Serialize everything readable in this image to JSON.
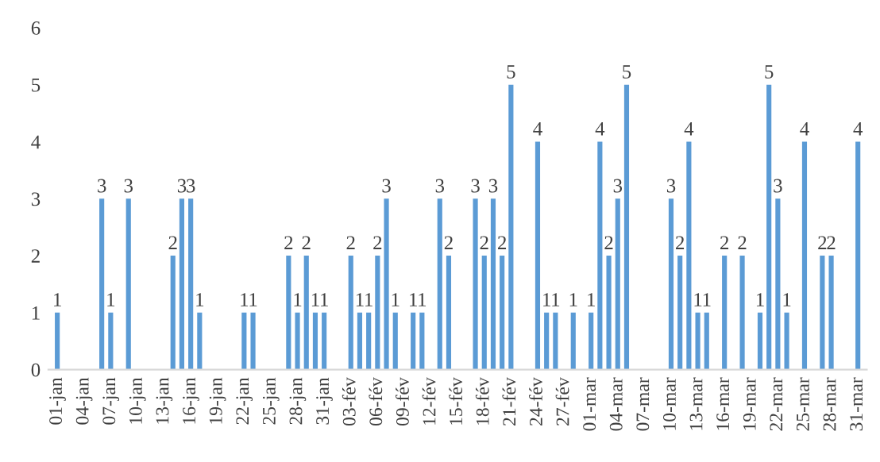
{
  "chart_data": {
    "type": "bar",
    "categories": [
      "01-jan",
      null,
      null,
      "04-jan",
      null,
      null,
      "07-jan",
      null,
      null,
      "10-jan",
      null,
      null,
      "13-jan",
      null,
      null,
      "16-jan",
      null,
      null,
      "19-jan",
      null,
      null,
      "22-jan",
      null,
      null,
      "25-jan",
      null,
      null,
      "28-jan",
      null,
      null,
      "31-jan",
      null,
      null,
      "03-fév",
      null,
      null,
      "06-fév",
      null,
      null,
      "09-fév",
      null,
      null,
      "12-fév",
      null,
      null,
      "15-fév",
      null,
      null,
      "18-fév",
      null,
      null,
      "21-fév",
      null,
      null,
      "24-fév",
      null,
      null,
      "27-fév",
      null,
      null,
      "01-mar",
      null,
      null,
      "04-mar",
      null,
      null,
      "07-mar",
      null,
      null,
      "10-mar",
      null,
      null,
      "13-mar",
      null,
      null,
      "16-mar",
      null,
      null,
      "19-mar",
      null,
      null,
      "22-mar",
      null,
      null,
      "25-mar",
      null,
      null,
      "28-mar",
      null,
      null,
      "31-mar"
    ],
    "values": [
      1,
      0,
      0,
      0,
      0,
      3,
      1,
      0,
      3,
      0,
      0,
      0,
      0,
      2,
      3,
      3,
      1,
      0,
      0,
      0,
      0,
      1,
      1,
      0,
      0,
      0,
      2,
      1,
      2,
      1,
      1,
      0,
      0,
      2,
      1,
      1,
      2,
      3,
      1,
      0,
      1,
      1,
      0,
      3,
      2,
      0,
      0,
      3,
      2,
      3,
      2,
      5,
      0,
      0,
      4,
      1,
      1,
      0,
      1,
      0,
      1,
      4,
      2,
      3,
      5,
      0,
      0,
      0,
      0,
      3,
      2,
      4,
      1,
      1,
      0,
      2,
      0,
      2,
      0,
      1,
      5,
      3,
      1,
      0,
      4,
      0,
      2,
      2,
      0,
      0,
      4
    ],
    "value_labels": [
      "1",
      null,
      null,
      null,
      null,
      "3",
      "1",
      null,
      "3",
      null,
      null,
      null,
      null,
      "2",
      "3",
      "3",
      "1",
      null,
      null,
      null,
      null,
      "1",
      "1",
      null,
      null,
      null,
      "2",
      "1",
      "2",
      "1",
      "1",
      null,
      null,
      "2",
      "1",
      "1",
      "2",
      "3",
      "1",
      null,
      "1",
      "1",
      null,
      "3",
      "2",
      null,
      null,
      "3",
      "2",
      "3",
      "2",
      "5",
      null,
      null,
      "4",
      "1",
      "1",
      null,
      "1",
      null,
      "1",
      "4",
      "2",
      "3",
      "5",
      null,
      null,
      null,
      null,
      "3",
      "2",
      "4",
      "1",
      "1",
      null,
      "2",
      null,
      "2",
      null,
      "1",
      "5",
      "3",
      "1",
      null,
      "4",
      null,
      "2",
      "2",
      null,
      null,
      "4"
    ],
    "color": "#5b9bd5",
    "ylim": [
      0,
      6
    ],
    "yticks": [
      0,
      1,
      2,
      3,
      4,
      5,
      6
    ],
    "grid": false,
    "legend": false
  }
}
